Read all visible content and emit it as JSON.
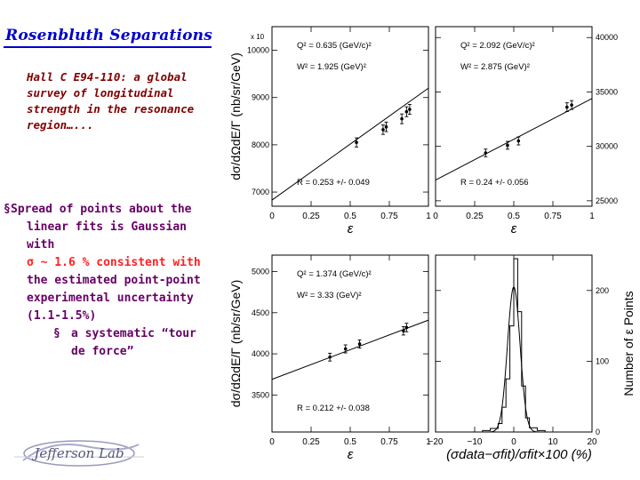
{
  "slide": {
    "title": "Rosenbluth Separations",
    "subtitle": "Hall C E94-110: a global survey of longitudinal strength in the resonance region…...",
    "bullet_main_line1": "Spread of points about the",
    "bullet_main_line2": "linear fits is Gaussian with",
    "bullet_sigma": "σ ~ 1.6 % consistent with",
    "bullet_line4": "the estimated point-point",
    "bullet_line5": "experimental uncertainty",
    "bullet_line6": "(1.1-1.5%)",
    "sub_bullet_mark": "§",
    "sub_bullet_line1": "a systematic “tour",
    "sub_bullet_line2": "de force”",
    "logo_text": "Jefferson Lab"
  },
  "chart_data": [
    {
      "type": "scatter",
      "panel": "top-left",
      "ylabel": "dσ/dΩdE/Γ (nb/sr/GeV)",
      "xlabel": "ε",
      "y_multiplier": "x 10",
      "xlim": [
        0,
        1
      ],
      "ylim": [
        6700,
        10500
      ],
      "xticks": [
        "0",
        "0.25",
        "0.5",
        "0.75",
        "1"
      ],
      "yticks": [
        7000,
        8000,
        9000,
        10000
      ],
      "annotations": [
        "Q² = 0.635 (GeV/c)²",
        "W² = 1.925 (GeV)²",
        "R = 0.253 +/- 0.049"
      ],
      "points": [
        [
          0.54,
          8050
        ],
        [
          0.71,
          8320
        ],
        [
          0.73,
          8380
        ],
        [
          0.83,
          8550
        ],
        [
          0.86,
          8700
        ],
        [
          0.88,
          8750
        ]
      ],
      "fit": [
        [
          0,
          6830
        ],
        [
          1,
          9200
        ]
      ]
    },
    {
      "type": "scatter",
      "panel": "top-right",
      "xlabel": "ε",
      "xlim": [
        0,
        1
      ],
      "ylim": [
        24500,
        41000
      ],
      "xticks": [
        "0",
        "0.25",
        "0.5",
        "0.75",
        "1"
      ],
      "yticks": [
        25000,
        30000,
        35000,
        40000
      ],
      "annotations": [
        "Q² = 2.092 (GeV/c)²",
        "W² = 2.875 (GeV)²",
        "R = 0.24 +/- 0.056"
      ],
      "points": [
        [
          0.32,
          29400
        ],
        [
          0.46,
          30100
        ],
        [
          0.53,
          30500
        ],
        [
          0.84,
          33600
        ],
        [
          0.87,
          33800
        ]
      ],
      "fit": [
        [
          0,
          26900
        ],
        [
          1,
          34400
        ]
      ]
    },
    {
      "type": "scatter",
      "panel": "bottom-left",
      "ylabel": "dσ/dΩdE/Γ (nb/sr/GeV)",
      "xlabel": "ε",
      "xlim": [
        0,
        1
      ],
      "ylim": [
        3050,
        5200
      ],
      "xticks": [
        "0",
        "0.25",
        "0.5",
        "0.75",
        "1"
      ],
      "yticks": [
        3500,
        4000,
        4500,
        5000
      ],
      "annotations": [
        "Q² = 1.374 (GeV/c)²",
        "W² = 3.33 (GeV)²",
        "R = 0.212 +/- 0.038"
      ],
      "points": [
        [
          0.37,
          3960
        ],
        [
          0.47,
          4060
        ],
        [
          0.56,
          4120
        ],
        [
          0.84,
          4280
        ],
        [
          0.86,
          4320
        ]
      ],
      "fit": [
        [
          0,
          3690
        ],
        [
          1,
          4410
        ]
      ]
    },
    {
      "type": "bar",
      "panel": "bottom-right",
      "ylabel": "Number of ε Points",
      "xlabel": "(σdata−σfit)/σfit×100 (%)",
      "xlim": [
        -20,
        20
      ],
      "ylim": [
        0,
        250
      ],
      "xticks": [
        "−20",
        "−10",
        "0",
        "10",
        "20"
      ],
      "yticks": [
        0,
        100,
        200
      ],
      "histogram": {
        "bin_edges": [
          -8,
          -6,
          -4,
          -3,
          -2,
          -1,
          0,
          1,
          2,
          3,
          4,
          6,
          8
        ],
        "counts": [
          2,
          5,
          12,
          35,
          75,
          150,
          245,
          170,
          65,
          20,
          6,
          2
        ]
      },
      "gaussian": {
        "amplitude": 205,
        "mean": 0,
        "sigma": 1.6
      }
    }
  ]
}
